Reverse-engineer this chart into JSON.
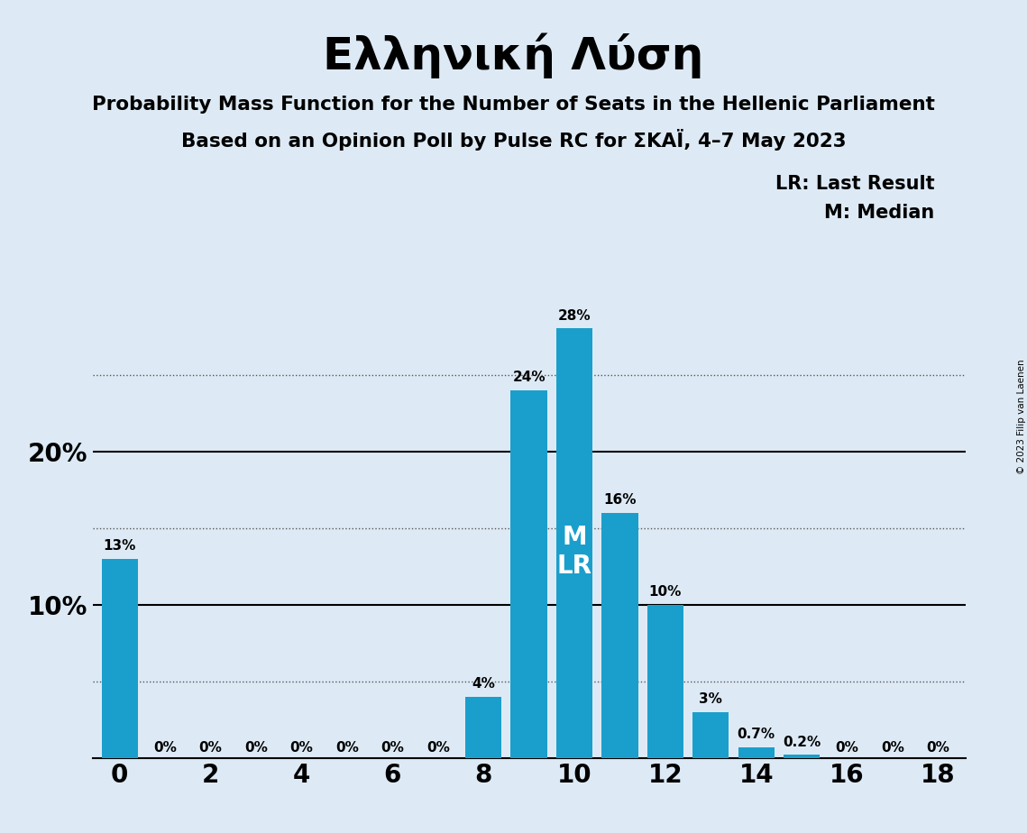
{
  "title": "Ελληνική Λύση",
  "subtitle1": "Probability Mass Function for the Number of Seats in the Hellenic Parliament",
  "subtitle2": "Based on an Opinion Poll by Pulse RC for ΣΚΑΪ, 4–7 May 2023",
  "copyright": "© 2023 Filip van Laenen",
  "legend1": "LR: Last Result",
  "legend2": "M: Median",
  "seats": [
    0,
    1,
    2,
    3,
    4,
    5,
    6,
    7,
    8,
    9,
    10,
    11,
    12,
    13,
    14,
    15,
    16,
    17,
    18
  ],
  "probs": [
    0.13,
    0.0,
    0.0,
    0.0,
    0.0,
    0.0,
    0.0,
    0.0,
    0.04,
    0.24,
    0.28,
    0.16,
    0.1,
    0.03,
    0.007,
    0.002,
    0.0,
    0.0,
    0.0
  ],
  "labels": [
    "13%",
    "0%",
    "0%",
    "0%",
    "0%",
    "0%",
    "0%",
    "0%",
    "4%",
    "24%",
    "28%",
    "16%",
    "10%",
    "3%",
    "0.7%",
    "0.2%",
    "0%",
    "0%",
    "0%"
  ],
  "bar_color": "#1a9fcc",
  "background_color": "#ddeaf5",
  "median_seat": 10,
  "last_result_seat": 10,
  "xlim": [
    -0.6,
    18.6
  ],
  "ylim": [
    0,
    0.315
  ],
  "yticks": [
    0.1,
    0.2
  ],
  "ytick_labels": [
    "10%",
    "20%"
  ],
  "dotted_yticks": [
    0.05,
    0.15,
    0.25
  ],
  "bar_width": 0.8
}
